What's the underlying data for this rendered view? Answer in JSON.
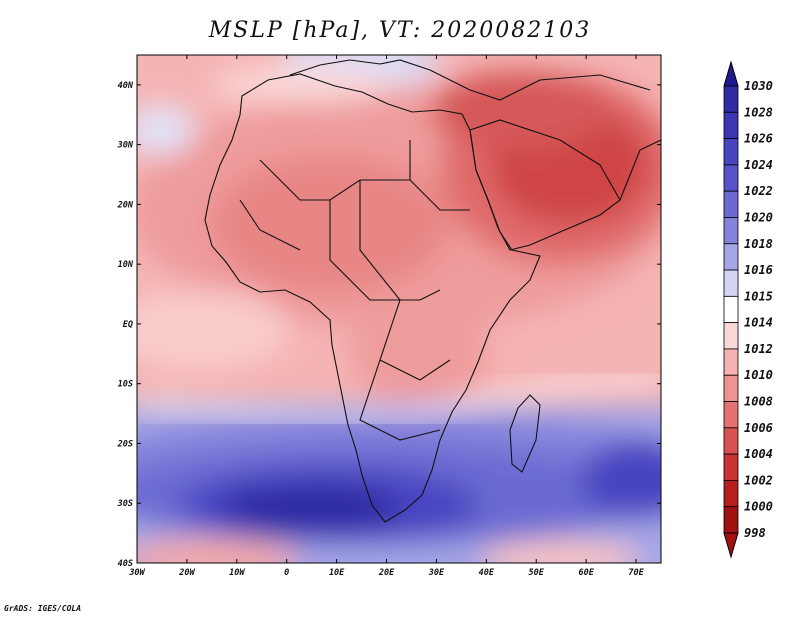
{
  "title": "MSLP [hPa], VT: 2020082103",
  "credit": "GrADS: IGES/COLA",
  "map": {
    "variable": "Mean sea level pressure",
    "units": "hPa",
    "valid_time": "2020082103",
    "lon_range": [
      -30,
      75
    ],
    "lat_range": [
      -40,
      45
    ],
    "lon_ticks": [
      "30W",
      "20W",
      "10W",
      "0",
      "10E",
      "20E",
      "30E",
      "40E",
      "50E",
      "60E",
      "70E"
    ],
    "lat_ticks": [
      "40N",
      "30N",
      "20N",
      "10N",
      "EQ",
      "10S",
      "20S",
      "30S",
      "40S"
    ]
  },
  "colorbar": {
    "levels": [
      "1030",
      "1028",
      "1026",
      "1024",
      "1022",
      "1020",
      "1018",
      "1016",
      "1015",
      "1014",
      "1012",
      "1010",
      "1008",
      "1006",
      "1004",
      "1002",
      "1000",
      "998"
    ],
    "colors": [
      "#211a8f",
      "#2f2ba3",
      "#3b37b3",
      "#4845c1",
      "#5753c9",
      "#6c6ad2",
      "#8482db",
      "#a6a6e6",
      "#d4d4f4",
      "#ffffff",
      "#fbd8d8",
      "#f6b2b2",
      "#ee9292",
      "#e47272",
      "#d85252",
      "#c93434",
      "#b71f1f",
      "#a11212"
    ]
  }
}
